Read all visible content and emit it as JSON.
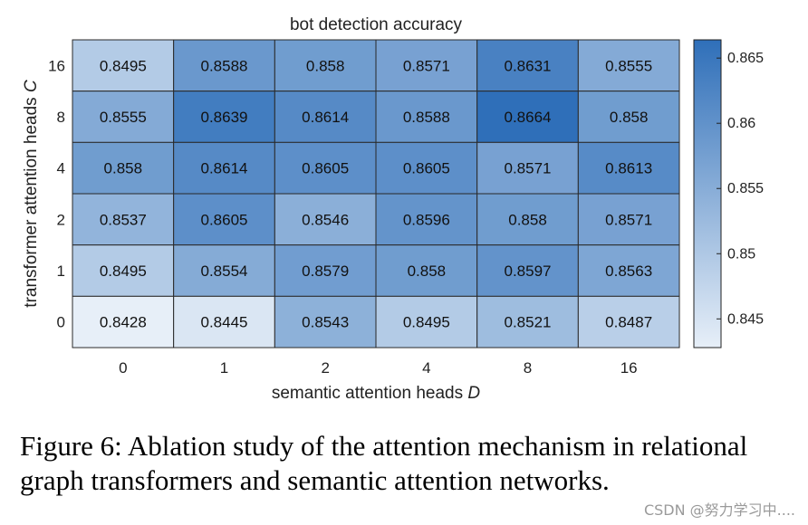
{
  "chart_data": {
    "type": "heatmap",
    "title": "bot detection accuracy",
    "xlabel": "semantic attention heads",
    "xlabel_var": "D",
    "ylabel": "transformer attention heads",
    "ylabel_var": "C",
    "x_categories": [
      "0",
      "1",
      "2",
      "4",
      "8",
      "16"
    ],
    "y_categories": [
      "16",
      "8",
      "4",
      "2",
      "1",
      "0"
    ],
    "values": [
      [
        "0.8495",
        "0.8588",
        "0.858",
        "0.8571",
        "0.8631",
        "0.8555"
      ],
      [
        "0.8555",
        "0.8639",
        "0.8614",
        "0.8588",
        "0.8664",
        "0.858"
      ],
      [
        "0.858",
        "0.8614",
        "0.8605",
        "0.8605",
        "0.8571",
        "0.8613"
      ],
      [
        "0.8537",
        "0.8605",
        "0.8546",
        "0.8596",
        "0.858",
        "0.8571"
      ],
      [
        "0.8495",
        "0.8554",
        "0.8579",
        "0.858",
        "0.8597",
        "0.8563"
      ],
      [
        "0.8428",
        "0.8445",
        "0.8543",
        "0.8495",
        "0.8521",
        "0.8487"
      ]
    ],
    "colorbar": {
      "ticks": [
        "0.845",
        "0.85",
        "0.855",
        "0.86",
        "0.865"
      ],
      "range": [
        0.8428,
        0.8664
      ],
      "color_low": "#e7eff8",
      "color_high": "#2f6fb9"
    },
    "grid": true,
    "legend": "none"
  },
  "caption": "Figure 6: Ablation study of the attention mechanism in relational graph transformers and semantic attention networks.",
  "watermark": "CSDN @努力学习中...."
}
